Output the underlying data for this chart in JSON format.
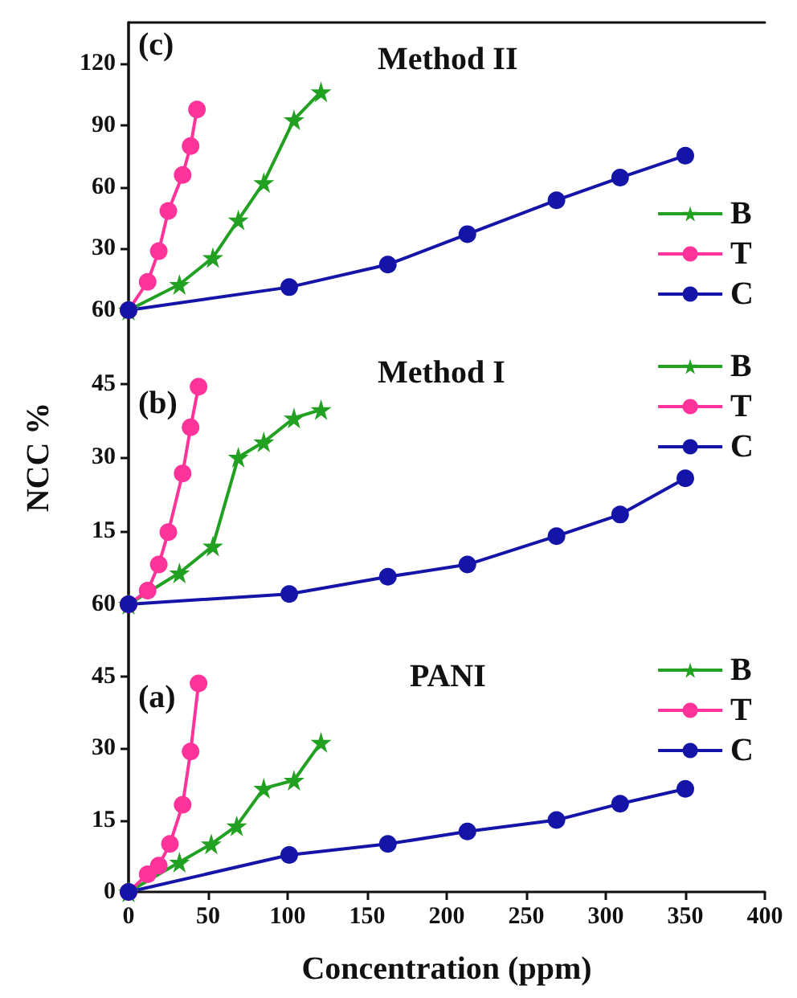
{
  "chart_data": [
    {
      "type": "line",
      "title": "Method II",
      "annotations": [
        "(c)"
      ],
      "xlim": [
        0,
        400
      ],
      "ylim": [
        0,
        140
      ],
      "yticks": [
        30,
        60,
        90,
        120
      ],
      "tick_labels": "y",
      "legend": "right",
      "grid": false,
      "line_style": "solid",
      "series": [
        {
          "name": "B",
          "color": "#22a022",
          "marker": "star",
          "x": [
            0,
            32,
            53,
            69,
            85,
            104,
            121
          ],
          "values": [
            0,
            12.5,
            25.6,
            43.9,
            62.1,
            92.7,
            106.3
          ]
        },
        {
          "name": "T",
          "color": "#ff3399",
          "marker": "circle",
          "x": [
            0,
            12,
            19,
            25,
            34,
            39,
            43
          ],
          "values": [
            0,
            13.8,
            28.7,
            48.3,
            65.8,
            79.9,
            97.7
          ]
        },
        {
          "name": "C",
          "color": "#1414a8",
          "marker": "circle",
          "x": [
            0,
            101,
            163,
            213,
            269,
            309,
            350
          ],
          "values": [
            0,
            11.2,
            22.2,
            37,
            53.5,
            64.5,
            75.2
          ]
        }
      ]
    },
    {
      "type": "line",
      "title": "Method I",
      "ylabel": "NCC %",
      "annotations": [
        "(b)"
      ],
      "xlim": [
        0,
        400
      ],
      "ylim": [
        0,
        60
      ],
      "yticks": [
        15,
        30,
        45,
        60
      ],
      "tick_labels": "y",
      "legend": "right",
      "grid": false,
      "line_style": "solid",
      "series": [
        {
          "name": "B",
          "color": "#22a022",
          "marker": "star",
          "x": [
            0,
            32,
            53,
            69,
            85,
            104,
            121
          ],
          "values": [
            0,
            6.4,
            11.9,
            30,
            33.1,
            38,
            39.7
          ]
        },
        {
          "name": "T",
          "color": "#ff3399",
          "marker": "circle",
          "x": [
            0,
            12,
            19,
            25,
            34,
            39,
            44
          ],
          "values": [
            0,
            2.8,
            8.1,
            14.7,
            26.7,
            36.1,
            44.4
          ]
        },
        {
          "name": "C",
          "color": "#1414a8",
          "marker": "circle",
          "x": [
            0,
            101,
            163,
            213,
            269,
            309,
            350
          ],
          "values": [
            0,
            2.1,
            5.6,
            8.1,
            13.9,
            18.3,
            25.7
          ]
        }
      ]
    },
    {
      "type": "line",
      "title": "PANI",
      "xlabel": "Concentration (ppm)",
      "annotations": [
        "(a)"
      ],
      "xlim": [
        0,
        400
      ],
      "xticks": [
        0,
        50,
        100,
        150,
        200,
        250,
        300,
        350,
        400
      ],
      "ylim": [
        0,
        60
      ],
      "yticks": [
        0,
        15,
        30,
        45,
        60
      ],
      "legend": "right",
      "grid": false,
      "line_style": "solid",
      "series": [
        {
          "name": "B",
          "color": "#22a022",
          "marker": "star",
          "x": [
            0,
            32,
            52,
            68,
            85,
            104,
            121
          ],
          "values": [
            0,
            6.2,
            10,
            13.8,
            21.6,
            23.3,
            31.2
          ]
        },
        {
          "name": "T",
          "color": "#ff3399",
          "marker": "circle",
          "x": [
            0,
            12,
            19,
            26,
            34,
            39,
            44
          ],
          "values": [
            0,
            3.7,
            5.5,
            10,
            18.2,
            29.3,
            43.5
          ]
        },
        {
          "name": "C",
          "color": "#1414a8",
          "marker": "circle",
          "x": [
            0,
            101,
            163,
            213,
            269,
            309,
            350
          ],
          "values": [
            0,
            7.7,
            10,
            12.6,
            15,
            18.4,
            21.5
          ]
        }
      ]
    }
  ]
}
